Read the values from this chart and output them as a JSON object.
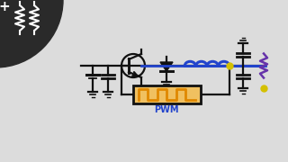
{
  "bg_color": "#dcdcdc",
  "dark_circle_color": "#2a2a2a",
  "cc": "#111111",
  "blue": "#2244cc",
  "orange": "#e08800",
  "yellow": "#d4c000",
  "purple": "#6633aa",
  "pwm_text_color": "#2244cc",
  "pwm_text": "PWM",
  "figsize": [
    3.2,
    1.8
  ],
  "dpi": 100
}
